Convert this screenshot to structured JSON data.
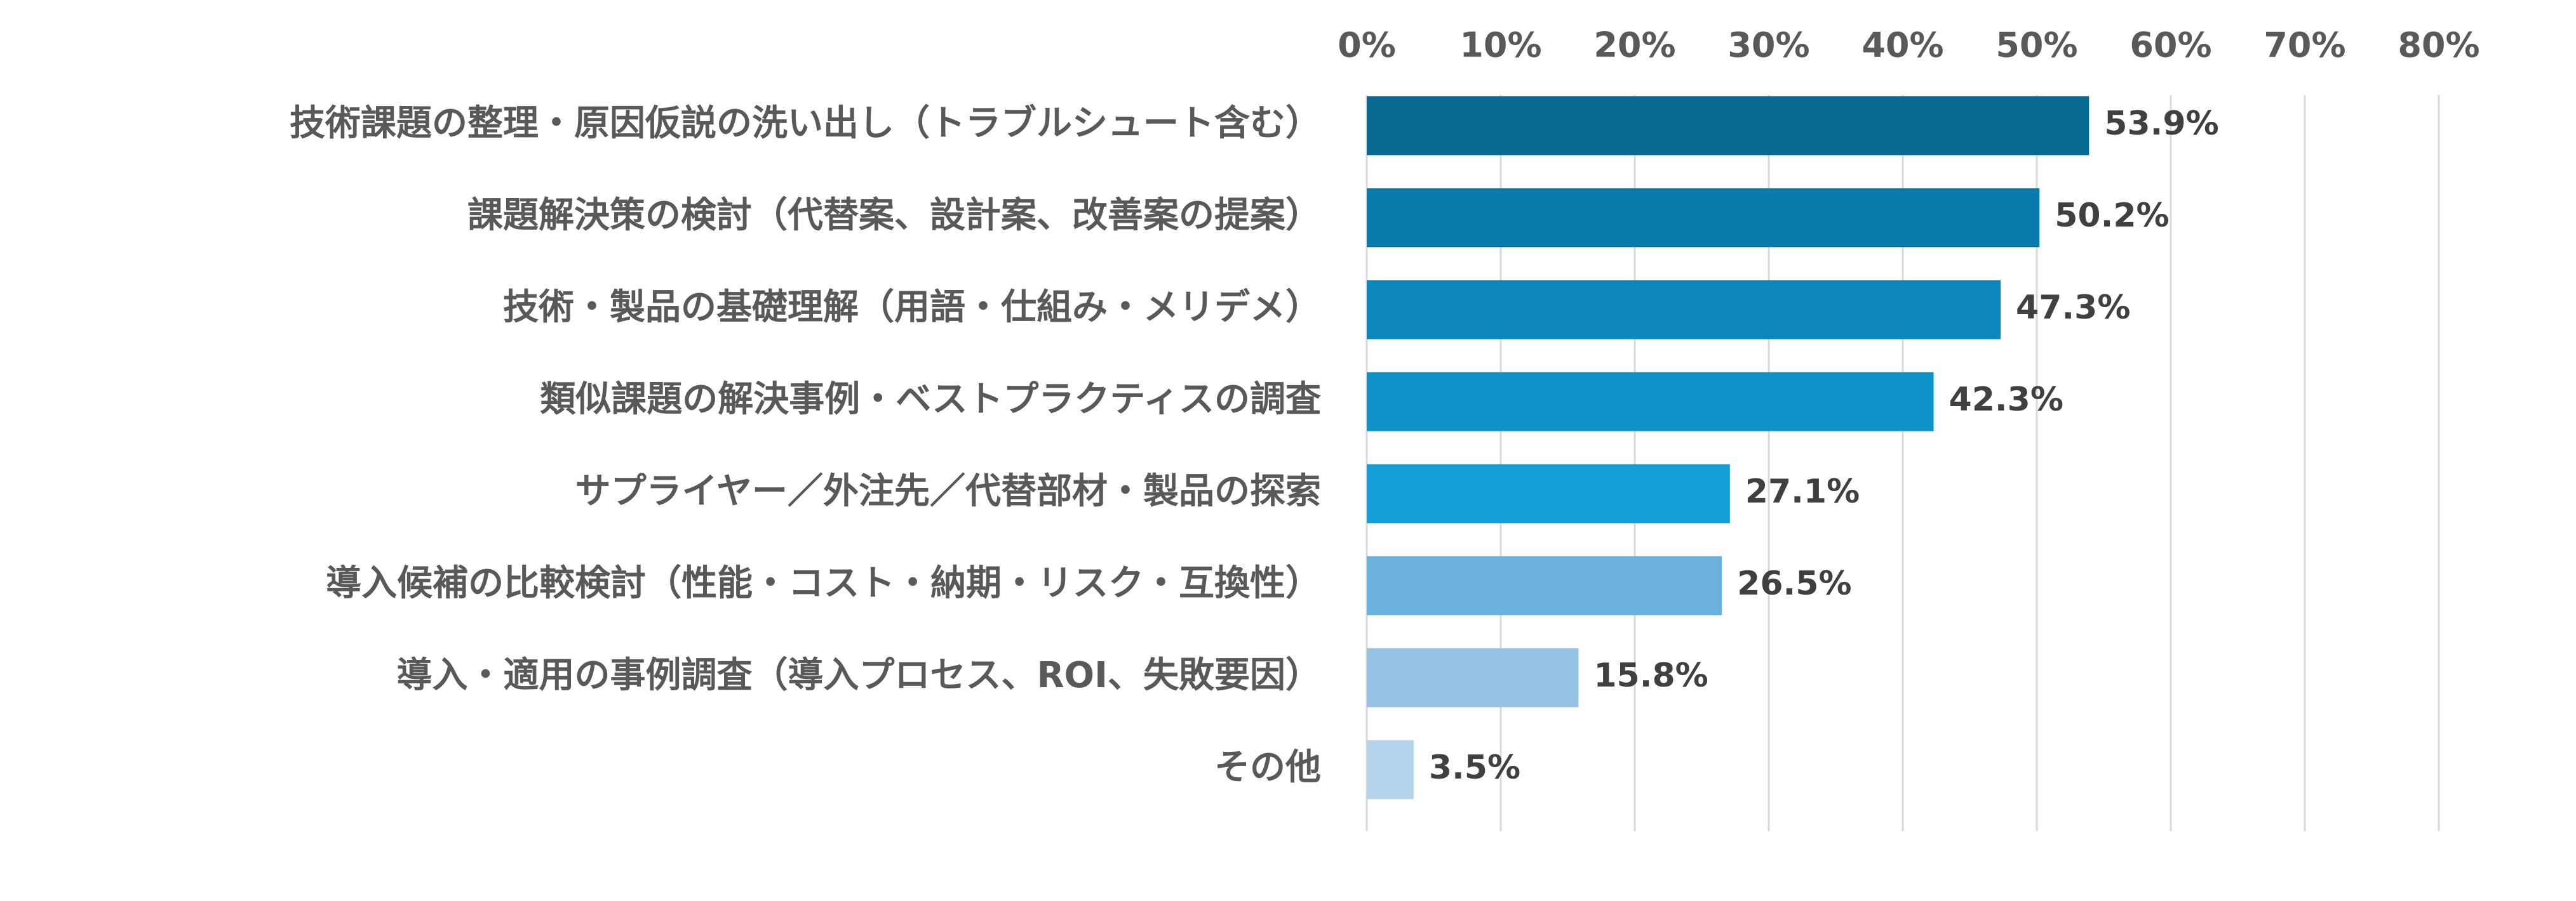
{
  "chart_data": {
    "type": "bar",
    "orientation": "horizontal",
    "categories": [
      "技術課題の整理・原因仮説の洗い出し（トラブルシュート含む）",
      "課題解決策の検討（代替案、設計案、改善案の提案）",
      "技術・製品の基礎理解（用語・仕組み・メリデメ）",
      "類似課題の解決事例・ベストプラクティスの調査",
      "サプライヤー／外注先／代替部材・製品の探索",
      "導入候補の比較検討（性能・コスト・納期・リスク・互換性）",
      "導入・適用の事例調査（導入プロセス、ROI、失敗要因）",
      "その他"
    ],
    "values": [
      53.9,
      50.2,
      47.3,
      42.3,
      27.1,
      26.5,
      15.8,
      3.5
    ],
    "value_labels": [
      "53.9%",
      "50.2%",
      "47.3%",
      "42.3%",
      "27.1%",
      "26.5%",
      "15.8%",
      "3.5%"
    ],
    "bar_colors": [
      "#086a93",
      "#0a7aab",
      "#0d88bd",
      "#1092c8",
      "#159fd9",
      "#6cb1dc",
      "#96c3e4",
      "#b3d3ec"
    ],
    "x_ticks": [
      "0%",
      "10%",
      "20%",
      "30%",
      "40%",
      "50%",
      "60%",
      "70%",
      "80%"
    ],
    "xlim": [
      0,
      80
    ],
    "x_axis_position": "top",
    "grid": true,
    "legend": "none",
    "title": "",
    "xlabel": "",
    "ylabel": ""
  }
}
